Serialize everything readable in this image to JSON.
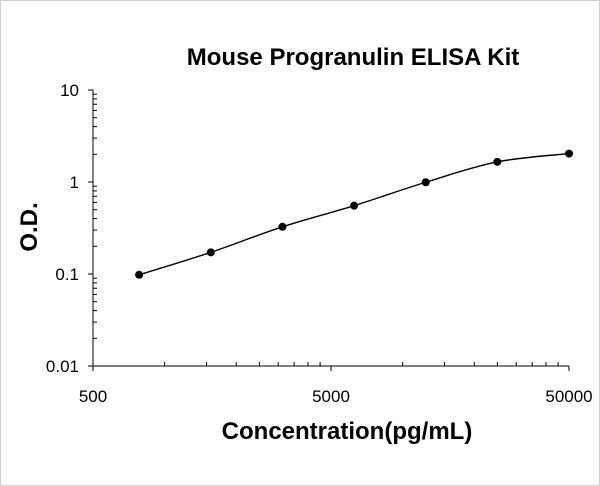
{
  "chart_data": {
    "type": "scatter",
    "title": "Mouse Progranulin ELISA Kit",
    "xlabel": "Concentration(pg/mL)",
    "ylabel": "O.D.",
    "x_scale": "log",
    "y_scale": "log",
    "xlim": [
      500,
      50000
    ],
    "ylim": [
      0.01,
      10
    ],
    "x_ticks": [
      "500",
      "5000",
      "50000"
    ],
    "y_ticks": [
      "10",
      "1",
      "0.1",
      "0.01"
    ],
    "grid": false,
    "legend": "none",
    "series": [
      {
        "x": [
          781,
          1563,
          3125,
          6250,
          12500,
          25000,
          50000
        ],
        "y": [
          0.098,
          0.172,
          0.326,
          0.553,
          0.994,
          1.656,
          2.036
        ]
      }
    ],
    "trendline": true,
    "colors": {
      "marker": "#000000",
      "line": "#000000",
      "axis": "#000000"
    }
  }
}
